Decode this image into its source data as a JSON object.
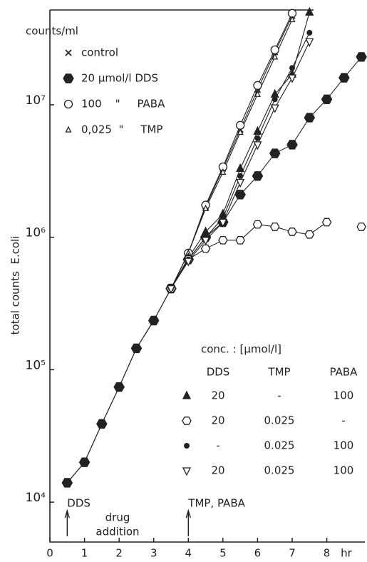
{
  "chart_data": {
    "type": "line",
    "y_axis_label": "total counts  E.coli",
    "y_unit_label": "counts/ml",
    "x_axis_label": "hr",
    "log_y": true,
    "xlim": [
      0,
      9.1
    ],
    "xticks": [
      0,
      1,
      2,
      3,
      4,
      5,
      6,
      7,
      8
    ],
    "ylim": [
      5000,
      52000000
    ],
    "yticks": [
      {
        "value": 10000,
        "label": "10⁴"
      },
      {
        "value": 100000,
        "label": "10⁵"
      },
      {
        "value": 1000000,
        "label": "10⁶"
      },
      {
        "value": 10000000,
        "label": "10⁷"
      }
    ],
    "x": [
      0.5,
      1,
      1.5,
      2,
      2.5,
      3,
      3.5,
      4,
      4.5,
      5,
      5.5,
      6,
      6.5,
      7,
      7.5,
      8,
      8.5,
      9
    ],
    "series": [
      {
        "name": "control",
        "marker": "x",
        "color": "#222",
        "values": [
          14000,
          20000,
          39000,
          74000,
          145000,
          235000,
          410000,
          760000,
          1700000,
          3300000,
          6500000,
          13000000,
          25000000,
          47000000,
          null,
          null,
          null,
          null
        ]
      },
      {
        "name": "20 µmol/l DDS",
        "marker": "hexagon-filled",
        "color": "#222",
        "values": [
          14000,
          20000,
          39000,
          74000,
          145000,
          235000,
          410000,
          680000,
          1000000,
          1300000,
          2100000,
          2900000,
          4300000,
          5000000,
          8000000,
          11000000,
          16000000,
          23000000
        ]
      },
      {
        "name": "100    \"     PABA",
        "marker": "circle-open",
        "color": "#222",
        "values": [
          null,
          null,
          null,
          null,
          null,
          null,
          410000,
          760000,
          1750000,
          3400000,
          7000000,
          14000000,
          26000000,
          49000000,
          null,
          null,
          null,
          null
        ]
      },
      {
        "name": "0,025  \"     TMP",
        "marker": "triangle-small",
        "color": "#222",
        "values": [
          null,
          null,
          null,
          null,
          null,
          null,
          410000,
          760000,
          1650000,
          3100000,
          6200000,
          12000000,
          23000000,
          44000000,
          null,
          null,
          null,
          null
        ]
      },
      {
        "marker": "triangle-filled",
        "color": "#222",
        "values": [
          null,
          null,
          null,
          null,
          null,
          null,
          410000,
          700000,
          1100000,
          1500000,
          3300000,
          6300000,
          12000000,
          17000000,
          50000000,
          null,
          null,
          null
        ]
      },
      {
        "marker": "hexagon-open",
        "color": "#222",
        "values": [
          null,
          null,
          null,
          null,
          null,
          null,
          410000,
          680000,
          820000,
          950000,
          950000,
          1250000,
          1200000,
          1100000,
          1050000,
          1300000,
          null,
          1200000
        ]
      },
      {
        "marker": "dot",
        "color": "#222",
        "values": [
          null,
          null,
          null,
          null,
          null,
          null,
          410000,
          680000,
          1000000,
          1400000,
          2900000,
          5600000,
          11000000,
          19000000,
          35000000,
          null,
          null,
          null
        ]
      },
      {
        "marker": "triangle-down-open",
        "color": "#222",
        "values": [
          null,
          null,
          null,
          null,
          null,
          null,
          410000,
          660000,
          950000,
          1300000,
          2600000,
          5000000,
          9500000,
          16000000,
          30000000,
          null,
          null,
          null
        ]
      }
    ],
    "annotations": [
      {
        "text": "DDS",
        "x": 0.5
      },
      {
        "text": "TMP, PABA",
        "x": 4
      }
    ],
    "caption": [
      "drug",
      "addition"
    ],
    "conc_table": {
      "title": "conc. : [µmol/l]",
      "columns": [
        "DDS",
        "TMP",
        "PABA"
      ],
      "rows": [
        [
          "20",
          "-",
          "100"
        ],
        [
          "20",
          "0.025",
          "-"
        ],
        [
          "-",
          "0.025",
          "100"
        ],
        [
          "20",
          "0.025",
          "100"
        ]
      ]
    }
  }
}
